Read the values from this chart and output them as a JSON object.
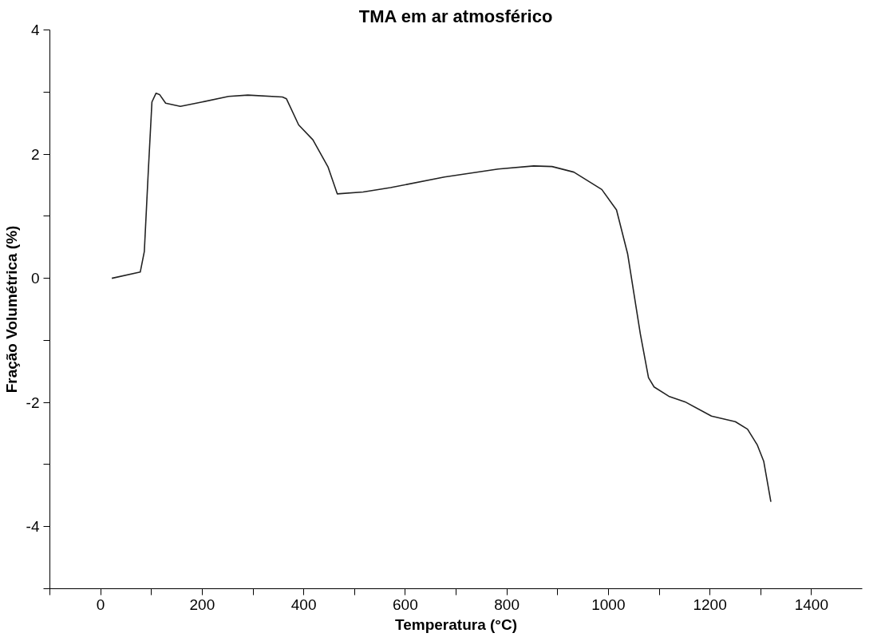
{
  "chart_data": {
    "type": "line",
    "title": "TMA em ar atmosférico",
    "xlabel": "Temperatura (°C)",
    "ylabel": "Fração Volumétrica (%)",
    "xlim": [
      -100,
      1500
    ],
    "ylim": [
      -5,
      4
    ],
    "xticks": [
      {
        "value": -100,
        "label": null
      },
      0,
      {
        "value": 100,
        "label": null
      },
      200,
      {
        "value": 300,
        "label": null
      },
      400,
      {
        "value": 500,
        "label": null
      },
      600,
      {
        "value": 700,
        "label": null
      },
      800,
      {
        "value": 900,
        "label": null
      },
      1000,
      {
        "value": 1100,
        "label": null
      },
      1200,
      {
        "value": 1300,
        "label": null
      },
      1400
    ],
    "yticks": [
      {
        "value": -5,
        "label": null
      },
      -4,
      {
        "value": -3,
        "label": null
      },
      -2,
      {
        "value": -1,
        "label": null
      },
      0,
      {
        "value": 1,
        "label": null
      },
      2,
      {
        "value": 3,
        "label": null
      },
      4
    ],
    "grid": false,
    "marker": "none",
    "line_style": "solid",
    "series": [
      {
        "color": "#222222",
        "x": [
          22,
          78,
          86,
          94,
          101,
          109,
          116,
          128,
          157,
          200,
          252,
          290,
          358,
          366,
          390,
          418,
          448,
          466,
          517,
          571,
          677,
          783,
          853,
          889,
          932,
          987,
          1016,
          1038,
          1055,
          1063,
          1079,
          1090,
          1119,
          1151,
          1203,
          1250,
          1274,
          1293,
          1306,
          1320
        ],
        "values": [
          0,
          0.1,
          0.43,
          1.75,
          2.84,
          2.98,
          2.96,
          2.82,
          2.77,
          2.84,
          2.93,
          2.95,
          2.92,
          2.89,
          2.47,
          2.23,
          1.79,
          1.36,
          1.39,
          1.46,
          1.63,
          1.76,
          1.81,
          1.8,
          1.71,
          1.43,
          1.1,
          0.39,
          -0.49,
          -0.9,
          -1.6,
          -1.75,
          -1.9,
          -1.99,
          -2.22,
          -2.31,
          -2.43,
          -2.68,
          -2.95,
          -3.6
        ]
      }
    ]
  }
}
